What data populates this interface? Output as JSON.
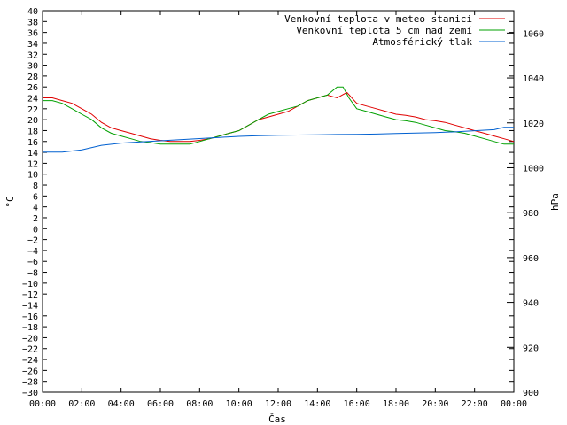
{
  "chart_data": {
    "type": "line",
    "xlabel": "Čas",
    "ylabel": "°C",
    "y2label": "hPa",
    "xlim": [
      0,
      24
    ],
    "ylim": [
      -30,
      40
    ],
    "y2lim": [
      900,
      1070
    ],
    "x_ticks": [
      "00:00",
      "02:00",
      "04:00",
      "06:00",
      "08:00",
      "10:00",
      "12:00",
      "14:00",
      "16:00",
      "18:00",
      "20:00",
      "22:00",
      "00:00"
    ],
    "y_ticks": [
      40,
      38,
      36,
      34,
      32,
      30,
      28,
      26,
      24,
      22,
      20,
      18,
      16,
      14,
      12,
      10,
      8,
      6,
      4,
      2,
      0,
      -2,
      -4,
      -6,
      -8,
      -10,
      -12,
      -14,
      -16,
      -18,
      -20,
      -22,
      -24,
      -26,
      -28,
      -30
    ],
    "y_tick_labels": [
      "40",
      "38",
      "36",
      "34",
      "32",
      "30",
      "28",
      "26",
      "24",
      "22",
      "20",
      "18",
      "16",
      "14",
      "12",
      "10",
      "8",
      "6",
      "4",
      "2",
      "0",
      "−2",
      "−4",
      "−6",
      "−8",
      "−10",
      "−12",
      "−14",
      "−16",
      "−18",
      "−20",
      "−22",
      "−24",
      "−26",
      "−28",
      "−30"
    ],
    "y2_ticks": [
      900,
      920,
      940,
      960,
      980,
      1000,
      1020,
      1040,
      1060
    ],
    "grid": false,
    "legend_position": "top-right",
    "series": [
      {
        "name": "Venkovní teplota v meteo stanici",
        "color": "#e00000",
        "axis": "left",
        "x": [
          0,
          0.5,
          1,
          1.5,
          2,
          2.5,
          3,
          3.5,
          4,
          4.5,
          5,
          5.5,
          6,
          6.5,
          7,
          7.5,
          8,
          8.5,
          9,
          9.5,
          10,
          10.5,
          11,
          11.5,
          12,
          12.5,
          13,
          13.5,
          14,
          14.5,
          15,
          15.5,
          16,
          16.5,
          17,
          17.5,
          18,
          18.5,
          19,
          19.5,
          20,
          20.5,
          21,
          21.5,
          22,
          22.5,
          23,
          23.5,
          24
        ],
        "values": [
          24,
          24,
          23.5,
          23,
          22,
          21,
          19.5,
          18.5,
          18,
          17.5,
          17,
          16.5,
          16.2,
          16,
          16,
          16,
          16.2,
          16.5,
          17,
          17.5,
          18,
          19,
          20,
          20.5,
          21,
          21.5,
          22.5,
          23.5,
          24,
          24.5,
          24,
          25,
          23,
          22.5,
          22,
          21.5,
          21,
          20.8,
          20.5,
          20,
          19.8,
          19.5,
          19,
          18.5,
          18,
          17.5,
          17,
          16.5,
          16
        ]
      },
      {
        "name": "Venkovní teplota 5 cm nad zemí",
        "color": "#00a000",
        "axis": "left",
        "x": [
          0,
          0.5,
          1,
          1.5,
          2,
          2.5,
          3,
          3.5,
          4,
          4.5,
          5,
          5.5,
          6,
          6.5,
          7,
          7.5,
          8,
          8.5,
          9,
          9.5,
          10,
          10.5,
          11,
          11.5,
          12,
          12.5,
          13,
          13.5,
          14,
          14.5,
          15,
          15.3,
          15.6,
          16,
          16.5,
          17,
          17.5,
          18,
          18.5,
          19,
          19.5,
          20,
          20.5,
          21,
          21.5,
          22,
          22.5,
          23,
          23.5,
          24
        ],
        "values": [
          23.5,
          23.5,
          23,
          22,
          21,
          20,
          18.5,
          17.5,
          17,
          16.5,
          16,
          15.8,
          15.5,
          15.5,
          15.5,
          15.5,
          16,
          16.5,
          17,
          17.5,
          18,
          19,
          20,
          21,
          21.5,
          22,
          22.5,
          23.5,
          24,
          24.5,
          26,
          26,
          24,
          22,
          21.5,
          21,
          20.5,
          20,
          19.8,
          19.5,
          19,
          18.5,
          18,
          17.8,
          17.5,
          17,
          16.5,
          16,
          15.5,
          15.5
        ]
      },
      {
        "name": "Atmosférický tlak",
        "color": "#0060d0",
        "axis": "right",
        "x": [
          0,
          1,
          2,
          3,
          4,
          5,
          6,
          7,
          8,
          9,
          10,
          11,
          12,
          13,
          14,
          15,
          16,
          17,
          18,
          19,
          20,
          21,
          22,
          23,
          23.5,
          24
        ],
        "values": [
          1007,
          1007,
          1008,
          1010,
          1011,
          1011.5,
          1012,
          1012.5,
          1013,
          1013.5,
          1014,
          1014.3,
          1014.5,
          1014.6,
          1014.7,
          1014.8,
          1014.9,
          1015,
          1015.3,
          1015.5,
          1015.7,
          1016,
          1016.5,
          1017,
          1018,
          1018
        ]
      }
    ]
  }
}
